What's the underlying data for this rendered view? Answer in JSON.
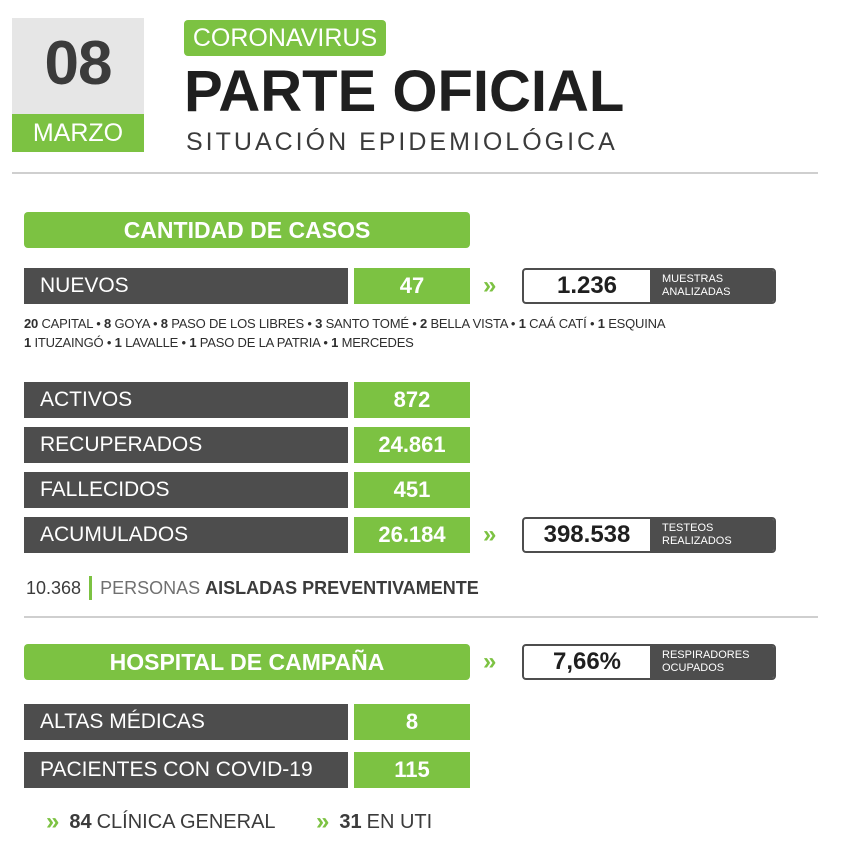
{
  "date": {
    "day": "08",
    "month": "MARZO"
  },
  "header": {
    "tag": "CORONAVIRUS",
    "title": "PARTE OFICIAL",
    "subtitle": "SITUACIÓN EPIDEMIOLÓGICA"
  },
  "cases": {
    "heading": "CANTIDAD DE CASOS",
    "nuevos": {
      "label": "NUEVOS",
      "value": "47"
    },
    "muestras": {
      "value": "1.236",
      "label1": "MUESTRAS",
      "label2": "ANALIZADAS"
    },
    "breakdown_line1": [
      {
        "n": "20",
        "place": "CAPITAL"
      },
      {
        "n": "8",
        "place": "GOYA"
      },
      {
        "n": "8",
        "place": "PASO DE LOS LIBRES"
      },
      {
        "n": "3",
        "place": "SANTO TOMÉ"
      },
      {
        "n": "2",
        "place": "BELLA VISTA"
      },
      {
        "n": "1",
        "place": "CAÁ CATÍ"
      },
      {
        "n": "1",
        "place": "ESQUINA"
      }
    ],
    "breakdown_line2": [
      {
        "n": "1",
        "place": "ITUZAINGÓ"
      },
      {
        "n": "1",
        "place": "LAVALLE"
      },
      {
        "n": "1",
        "place": "PASO DE LA PATRIA"
      },
      {
        "n": "1",
        "place": "MERCEDES"
      }
    ],
    "activos": {
      "label": "ACTIVOS",
      "value": "872"
    },
    "recuperados": {
      "label": "RECUPERADOS",
      "value": "24.861"
    },
    "fallecidos": {
      "label": "FALLECIDOS",
      "value": "451"
    },
    "acumulados": {
      "label": "ACUMULADOS",
      "value": "26.184"
    },
    "testeos": {
      "value": "398.538",
      "label1": "TESTEOS",
      "label2": "REALIZADOS"
    },
    "aisladas": {
      "value": "10.368",
      "text1": "PERSONAS",
      "text2": "AISLADAS PREVENTIVAMENTE"
    }
  },
  "hospital": {
    "heading": "HOSPITAL DE CAMPAÑA",
    "respiradores": {
      "value": "7,66%",
      "label1": "RESPIRADORES",
      "label2": "OCUPADOS"
    },
    "altas": {
      "label": "ALTAS MÉDICAS",
      "value": "8"
    },
    "pacientes": {
      "label": "PACIENTES CON COVID-19",
      "value": "115"
    },
    "clinica": {
      "value": "84",
      "label": "CLÍNICA GENERAL"
    },
    "uti": {
      "value": "31",
      "label": "EN UTI"
    }
  },
  "colors": {
    "green": "#7cc242",
    "dark": "#4d4d4d"
  },
  "icons": {
    "chevron": "double-chevron-right-icon"
  }
}
